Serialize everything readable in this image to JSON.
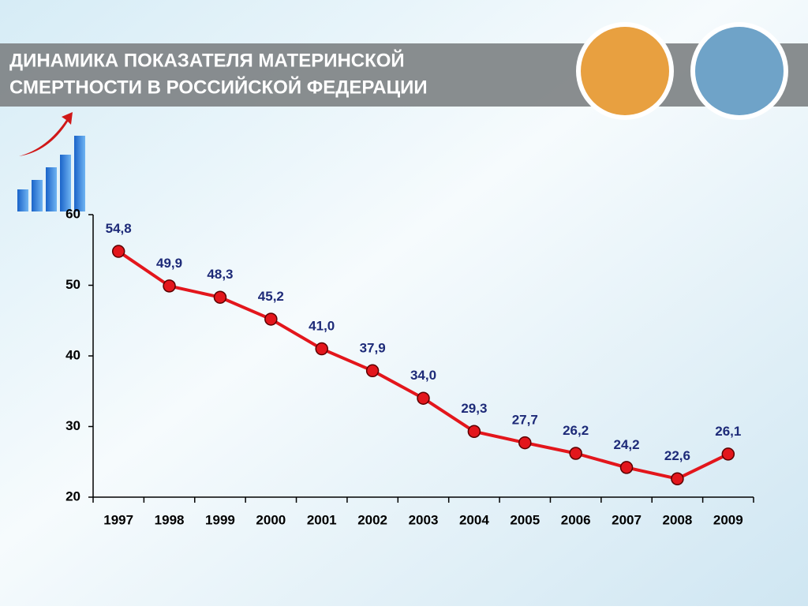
{
  "chart_data": {
    "type": "line",
    "title": [
      "ДИНАМИКА ПОКАЗАТЕЛЯ МАТЕРИНСКОЙ",
      "СМЕРТНОСТИ В РОССИЙСКОЙ ФЕДЕРАЦИИ"
    ],
    "categories": [
      "1997",
      "1998",
      "1999",
      "2000",
      "2001",
      "2002",
      "2003",
      "2004",
      "2005",
      "2006",
      "2007",
      "2008",
      "2009"
    ],
    "values": [
      54.8,
      49.9,
      48.3,
      45.2,
      41.0,
      37.9,
      34.0,
      29.3,
      27.7,
      26.2,
      24.2,
      22.6,
      26.1
    ],
    "value_labels": [
      "54,8",
      "49,9",
      "48,3",
      "45,2",
      "41,0",
      "37,9",
      "34,0",
      "29,3",
      "27,7",
      "26,2",
      "24,2",
      "22,6",
      "26,1"
    ],
    "color": "#e3161c",
    "ylim": [
      20,
      60
    ],
    "yticks": [
      20,
      30,
      40,
      50,
      60
    ],
    "grid": false
  }
}
